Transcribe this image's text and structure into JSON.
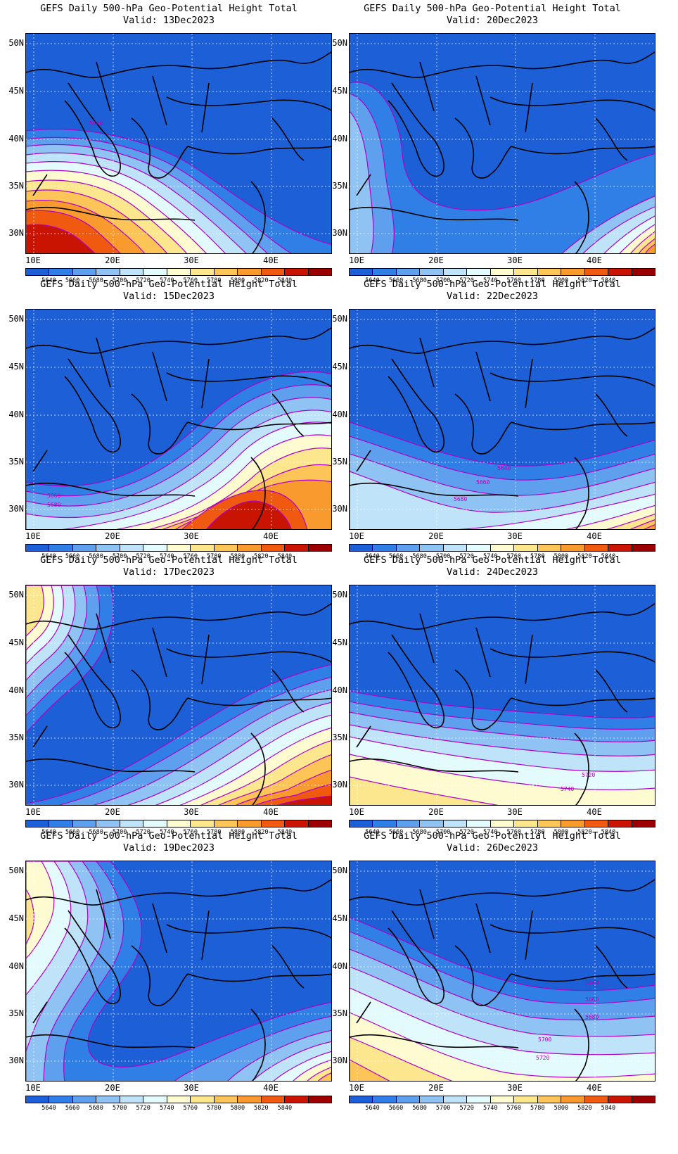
{
  "colorbar": {
    "levels": [
      "5640",
      "5660",
      "5680",
      "5700",
      "5720",
      "5740",
      "5760",
      "5780",
      "5800",
      "5820",
      "5840"
    ],
    "colors": [
      "#1c5fd6",
      "#2f7fe6",
      "#5ea0ee",
      "#8fc3f3",
      "#bfe3f8",
      "#e4fbfd",
      "#fffbd0",
      "#fde78e",
      "#fdc457",
      "#f99a2e",
      "#ef5a10",
      "#c81400",
      "#9a0000"
    ]
  },
  "lat_labels": [
    "50N",
    "45N",
    "40N",
    "35N",
    "30N"
  ],
  "lon_labels": [
    "10E",
    "20E",
    "30E",
    "40E"
  ],
  "panels": [
    {
      "title": "GEFS Daily 500-hPa Geo-Potential Height Total",
      "valid": "Valid: 13Dec2023",
      "contour_labels": [
        "5640"
      ]
    },
    {
      "title": "GEFS Daily 500-hPa Geo-Potential Height Total",
      "valid": "Valid: 20Dec2023",
      "contour_labels": []
    },
    {
      "title": "GEFS Daily 500-hPa Geo-Potential Height Total",
      "valid": "Valid: 15Dec2023",
      "contour_labels": [
        "5660",
        "5680"
      ]
    },
    {
      "title": "GEFS Daily 500-hPa Geo-Potential Height Total",
      "valid": "Valid: 22Dec2023",
      "contour_labels": [
        "5640",
        "5660",
        "5680"
      ]
    },
    {
      "title": "GEFS Daily 500-hPa Geo-Potential Height Total",
      "valid": "Valid: 17Dec2023",
      "contour_labels": []
    },
    {
      "title": "GEFS Daily 500-hPa Geo-Potential Height Total",
      "valid": "Valid: 24Dec2023",
      "contour_labels": [
        "5720",
        "5740"
      ]
    },
    {
      "title": "GEFS Daily 500-hPa Geo-Potential Height Total",
      "valid": "Valid: 19Dec2023",
      "contour_labels": []
    },
    {
      "title": "GEFS Daily 500-hPa Geo-Potential Height Total",
      "valid": "Valid: 26Dec2023",
      "contour_labels": [
        "5640",
        "5660",
        "5680",
        "5700",
        "5720"
      ]
    }
  ]
}
